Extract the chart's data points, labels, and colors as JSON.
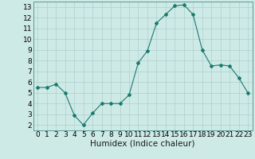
{
  "x": [
    0,
    1,
    2,
    3,
    4,
    5,
    6,
    7,
    8,
    9,
    10,
    11,
    12,
    13,
    14,
    15,
    16,
    17,
    18,
    19,
    20,
    21,
    22,
    23
  ],
  "y": [
    5.5,
    5.5,
    5.8,
    5.0,
    2.9,
    2.0,
    3.1,
    4.0,
    4.0,
    4.0,
    4.8,
    7.8,
    8.9,
    11.5,
    12.3,
    13.1,
    13.2,
    12.3,
    9.0,
    7.5,
    7.6,
    7.5,
    6.4,
    5.0
  ],
  "line_color": "#1a7a6e",
  "marker": "D",
  "marker_size": 2.0,
  "bg_color": "#ceeae7",
  "grid_color": "#aecfcc",
  "xlabel": "Humidex (Indice chaleur)",
  "xlabel_fontsize": 7.5,
  "tick_fontsize": 6.5,
  "ylim": [
    1.5,
    13.5
  ],
  "xlim": [
    -0.5,
    23.5
  ],
  "yticks": [
    2,
    3,
    4,
    5,
    6,
    7,
    8,
    9,
    10,
    11,
    12,
    13
  ],
  "xticks": [
    0,
    1,
    2,
    3,
    4,
    5,
    6,
    7,
    8,
    9,
    10,
    11,
    12,
    13,
    14,
    15,
    16,
    17,
    18,
    19,
    20,
    21,
    22,
    23
  ]
}
